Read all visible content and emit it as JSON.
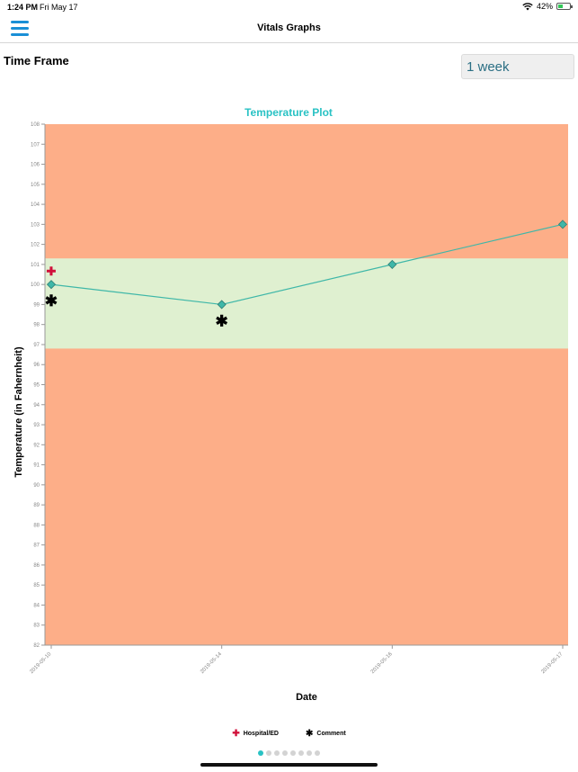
{
  "status_bar": {
    "time": "1:24 PM",
    "date": "Fri May 17",
    "battery": "42%",
    "battery_level": 0.42,
    "icons": [
      "wifi-icon",
      "battery-icon"
    ]
  },
  "nav": {
    "title": "Vitals Graphs",
    "menu_icon": "hamburger-menu-icon",
    "accent": "#1a8fd6"
  },
  "time_frame": {
    "label": "Time Frame",
    "selected": "1 week"
  },
  "chart_data": {
    "type": "line",
    "title": "Temperature Plot",
    "title_color": "#29c2c4",
    "xlabel": "Date",
    "ylabel": "Temperature (in Fahernheit)",
    "categories": [
      "2019-05-10",
      "2019-05-14",
      "2019-05-16",
      "2019-05-17"
    ],
    "series": [
      {
        "values": [
          100,
          99,
          101,
          103
        ],
        "color": "#3fb7a8"
      }
    ],
    "ylim": [
      82,
      108
    ],
    "yticks": [
      82,
      83,
      84,
      85,
      86,
      87,
      88,
      89,
      90,
      91,
      92,
      93,
      94,
      95,
      96,
      97,
      98,
      99,
      100,
      101,
      102,
      103,
      104,
      105,
      106,
      107,
      108
    ],
    "normal_band": [
      96.8,
      101.3
    ],
    "band_colors": {
      "alert": "#fdae88",
      "normal": "#dff0d0"
    },
    "markers": [
      {
        "x": "2019-05-10",
        "type": "hospital",
        "symbol": "✚"
      },
      {
        "x": "2019-05-10",
        "type": "comment",
        "symbol": "✱"
      },
      {
        "x": "2019-05-14",
        "type": "comment",
        "symbol": "✱"
      }
    ],
    "grid": false
  },
  "legend": {
    "hospital_label": "Hospital/ED",
    "comment_label": "Comment",
    "hospital_symbol": "✚",
    "comment_symbol": "✱"
  },
  "pagination": {
    "count": 8,
    "active": 0
  }
}
